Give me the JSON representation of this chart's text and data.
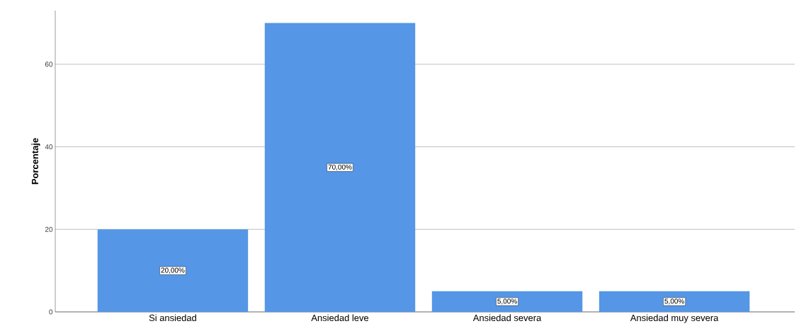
{
  "chart_data": {
    "type": "bar",
    "ylabel": "Porcentaje",
    "categories": [
      "Si  ansiedad",
      "Ansiedad leve",
      "Ansiedad severa",
      "Ansiedad muy severa"
    ],
    "values": [
      20,
      70,
      5,
      5
    ],
    "value_labels": [
      "20,00%",
      "70,00%",
      "5,00%",
      "5,00%"
    ],
    "color": "#5596e6",
    "ylim": [
      0,
      73
    ],
    "yticks": [
      0,
      20,
      40,
      60
    ],
    "grid": "y"
  }
}
